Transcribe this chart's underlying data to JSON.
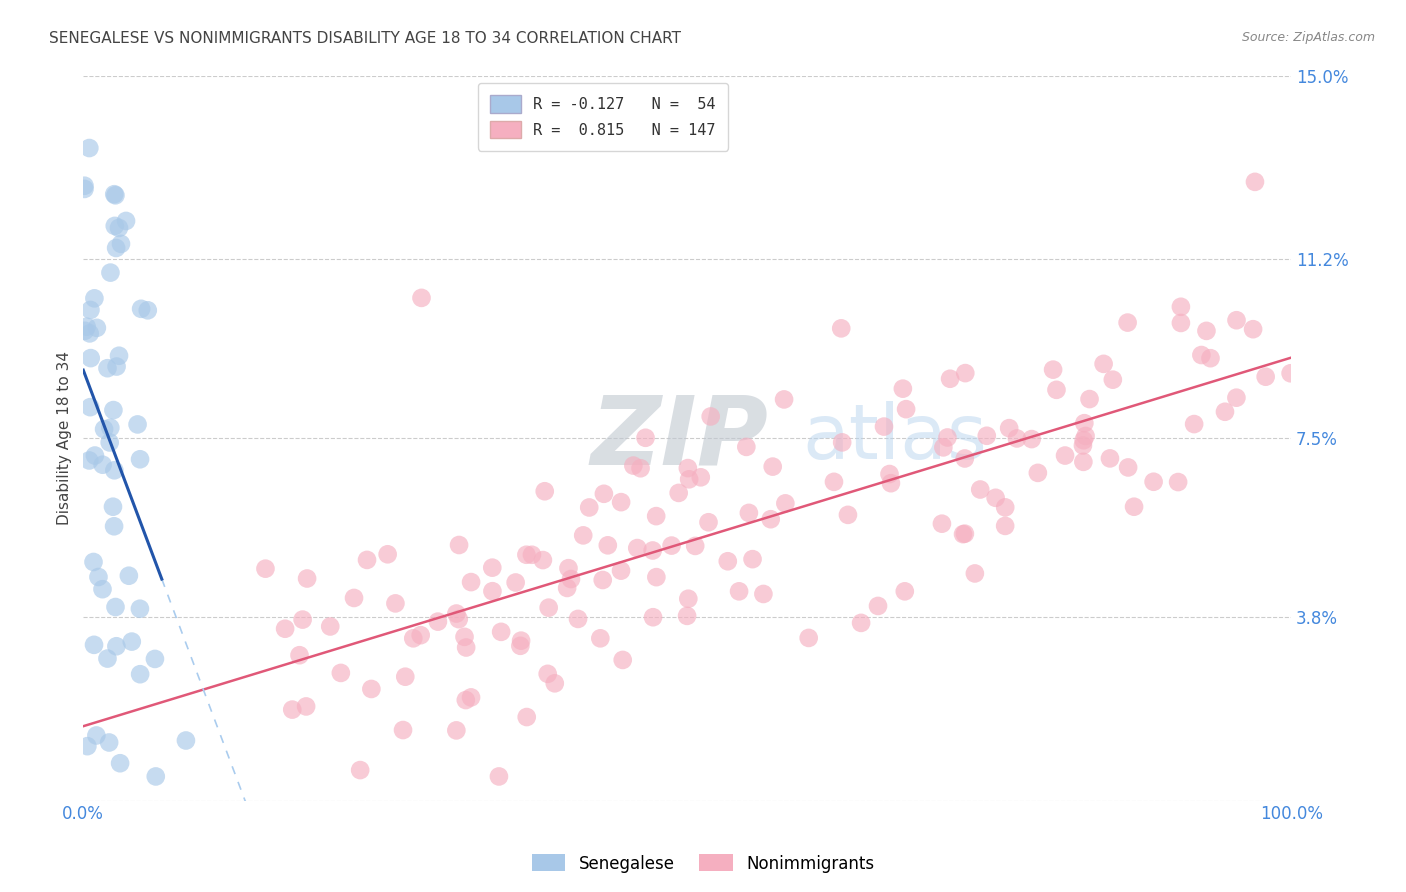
{
  "title": "SENEGALESE VS NONIMMIGRANTS DISABILITY AGE 18 TO 34 CORRELATION CHART",
  "source": "Source: ZipAtlas.com",
  "ylabel": "Disability Age 18 to 34",
  "xlim": [
    0.0,
    1.0
  ],
  "ylim": [
    0.0,
    0.15
  ],
  "yticks": [
    0.0,
    0.038,
    0.075,
    0.112,
    0.15
  ],
  "ytick_labels": [
    "",
    "3.8%",
    "7.5%",
    "11.2%",
    "15.0%"
  ],
  "xtick_labels": [
    "0.0%",
    "100.0%"
  ],
  "senegalese_color": "#a8c8e8",
  "nonimmigrant_color": "#f5afc0",
  "senegalese_line_color": "#2255aa",
  "nonimmigrant_line_color": "#e05878",
  "senegalese_dash_color": "#aaccee",
  "background_color": "#ffffff",
  "grid_color": "#cccccc",
  "title_color": "#444444",
  "label_color": "#4488dd",
  "seed": 12345
}
